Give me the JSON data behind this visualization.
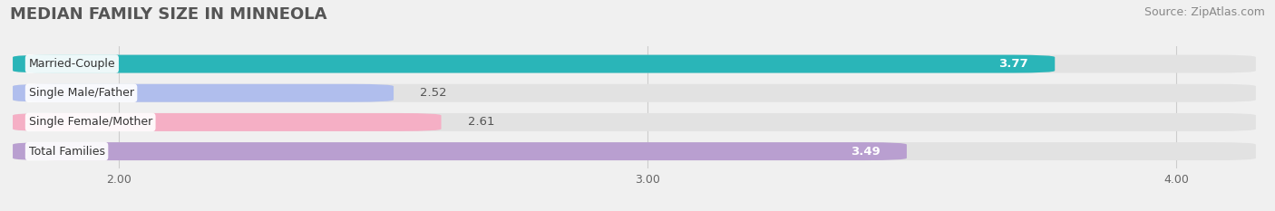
{
  "title": "MEDIAN FAMILY SIZE IN MINNEOLA",
  "source": "Source: ZipAtlas.com",
  "categories": [
    "Married-Couple",
    "Single Male/Father",
    "Single Female/Mother",
    "Total Families"
  ],
  "values": [
    3.77,
    2.52,
    2.61,
    3.49
  ],
  "bar_colors": [
    "#2ab5b8",
    "#b0beed",
    "#f5afc5",
    "#b99fd0"
  ],
  "xlim": [
    1.8,
    4.15
  ],
  "xticks": [
    2.0,
    3.0,
    4.0
  ],
  "xtick_labels": [
    "2.00",
    "3.00",
    "4.00"
  ],
  "background_color": "#f0f0f0",
  "bar_background_color": "#e2e2e2",
  "title_fontsize": 13,
  "source_fontsize": 9,
  "bar_label_fontsize": 9.5,
  "category_label_fontsize": 9,
  "bar_height": 0.62,
  "figsize": [
    14.06,
    2.33
  ],
  "dpi": 100
}
